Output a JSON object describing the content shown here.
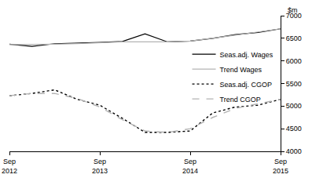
{
  "chart_data": {
    "type": "line",
    "y_label": "$m",
    "categories": [
      "Sep 2012",
      null,
      null,
      null,
      "Sep 2013",
      null,
      null,
      null,
      "Sep 2014",
      null,
      null,
      null,
      "Sep 2015"
    ],
    "series": [
      {
        "name": "Seas.adj. Wages",
        "color": "#000000",
        "line_style": "solid",
        "values": [
          6370,
          6320,
          6380,
          6390,
          6410,
          6430,
          6600,
          6420,
          6440,
          6500,
          6580,
          6630,
          6710
        ]
      },
      {
        "name": "Trend Wages",
        "color": "#b3b3b3",
        "line_style": "solid",
        "values": [
          6360,
          6360,
          6370,
          6380,
          6400,
          6420,
          6420,
          6420,
          6440,
          6500,
          6570,
          6640,
          6710
        ]
      },
      {
        "name": "Seas.adj. CGOP",
        "color": "#000000",
        "line_style": "dot",
        "values": [
          5230,
          5280,
          5360,
          5150,
          5020,
          4730,
          4420,
          4420,
          4450,
          4850,
          4980,
          5020,
          5150
        ]
      },
      {
        "name": "Trend CGOP",
        "color": "#b3b3b3",
        "line_style": "dash",
        "values": [
          5230,
          5280,
          5280,
          5170,
          4980,
          4700,
          4450,
          4420,
          4500,
          4750,
          4950,
          5050,
          5150
        ]
      }
    ],
    "ylim": [
      4000,
      7000
    ],
    "yticks": [
      4000,
      4500,
      5000,
      5500,
      6000,
      6500,
      7000
    ],
    "grid": false,
    "legend": "right"
  }
}
